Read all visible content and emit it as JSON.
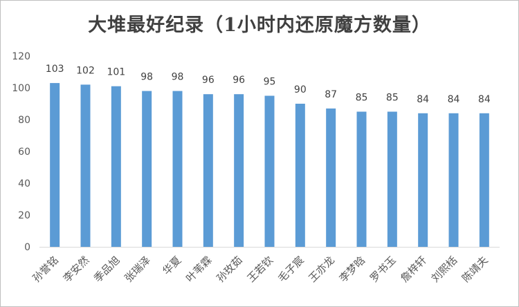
{
  "chart_data": {
    "type": "bar",
    "title": "大堆最好纪录（1小时内还原魔方数量）",
    "categories": [
      "孙誉铭",
      "李安然",
      "季品旭",
      "张瑞泽",
      "华夏",
      "叶苇霖",
      "孙玫茹",
      "王若钦",
      "毛子宸",
      "王亦龙",
      "李梦晗",
      "罗书玉",
      "詹梓轩",
      "刘熙栝",
      "陈靖夫"
    ],
    "values": [
      103,
      102,
      101,
      98,
      98,
      96,
      96,
      95,
      90,
      87,
      85,
      85,
      84,
      84,
      84
    ],
    "ylim": [
      0,
      120
    ],
    "yticks": [
      "0",
      "20",
      "40",
      "60",
      "80",
      "100",
      "120"
    ],
    "grid": false,
    "legend": "none",
    "bar_color": "#5b9bd5",
    "axis_color": "#d9d9d9"
  }
}
